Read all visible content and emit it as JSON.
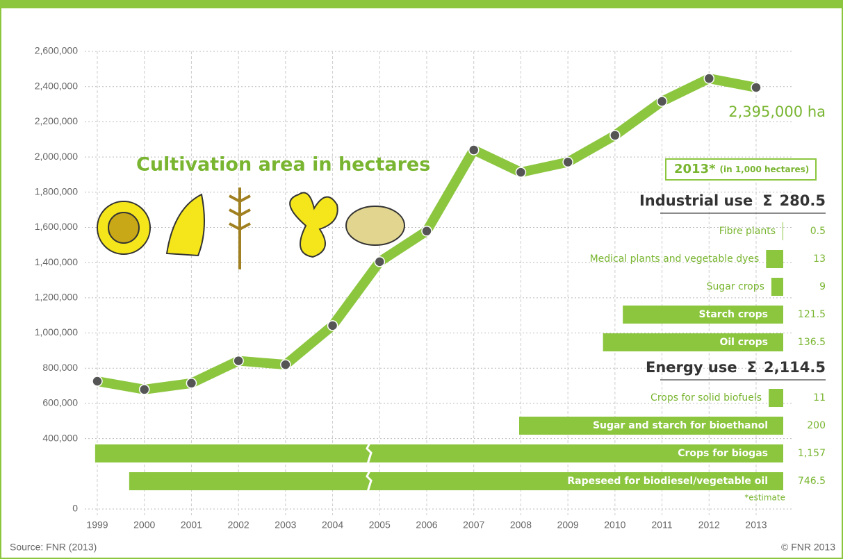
{
  "chart_data": [
    {
      "type": "line",
      "title": "Cultivation area in hectares",
      "color": "#8cc63f",
      "marker_color": "#555555",
      "x": [
        1999,
        2000,
        2001,
        2002,
        2003,
        2004,
        2005,
        2006,
        2007,
        2008,
        2009,
        2010,
        2011,
        2012,
        2013
      ],
      "values": [
        726000,
        679000,
        715000,
        842000,
        820000,
        1042000,
        1405000,
        1579000,
        2040000,
        1913000,
        1971000,
        2123000,
        2316000,
        2446000,
        2395000
      ],
      "annotation": "2,395,000 ha",
      "xlim": [
        1999,
        2013
      ],
      "xticks": [
        1999,
        2000,
        2001,
        2002,
        2003,
        2004,
        2005,
        2006,
        2007,
        2008,
        2009,
        2010,
        2011,
        2012,
        2013
      ],
      "ylim": [
        0,
        2600000
      ],
      "yticks": [
        {
          "value": 0,
          "label": "0"
        },
        {
          "value": 400000,
          "label": "400,000"
        },
        {
          "value": 600000,
          "label": "600,000"
        },
        {
          "value": 800000,
          "label": "800,000"
        },
        {
          "value": 1000000,
          "label": "1,000,000"
        },
        {
          "value": 1200000,
          "label": "1,200,000"
        },
        {
          "value": 1400000,
          "label": "1,400,000"
        },
        {
          "value": 1600000,
          "label": "1,600,000"
        },
        {
          "value": 1800000,
          "label": "1,800,000"
        },
        {
          "value": 2000000,
          "label": "2,000,000"
        },
        {
          "value": 2200000,
          "label": "2,200,000"
        },
        {
          "value": 2400000,
          "label": "2,400,000"
        },
        {
          "value": 2600000,
          "label": "2,600,000"
        }
      ],
      "grid": true
    },
    {
      "type": "bar",
      "orientation": "horizontal",
      "title": "2013*",
      "subtitle": "(in 1,000 hectares)",
      "color": "#8cc63f",
      "sum_symbol": "Σ",
      "note": "*estimate",
      "groups": [
        {
          "name": "Industrial use",
          "total": 280.5,
          "total_label": "280.5",
          "categories": [
            "Fibre plants",
            "Medical plants and vegetable dyes",
            "Sugar crops",
            "Starch crops",
            "Oil crops"
          ],
          "values": [
            0.5,
            13,
            9,
            121.5,
            136.5
          ],
          "value_labels": [
            "0.5",
            "13",
            "9",
            "121.5",
            "136.5"
          ]
        },
        {
          "name": "Energy use",
          "total": 2114.5,
          "total_label": "2,114.5",
          "categories": [
            "Crops for solid biofuels",
            "Sugar and starch for bioethanol",
            "Crops for biogas",
            "Rapeseed for biodiesel/vegetable oil"
          ],
          "values": [
            11,
            200,
            1157,
            746.5
          ],
          "value_labels": [
            "11",
            "200",
            "1,157",
            "746.5"
          ]
        }
      ]
    }
  ],
  "source": "Source: FNR (2013)",
  "copyright": "© FNR 2013"
}
